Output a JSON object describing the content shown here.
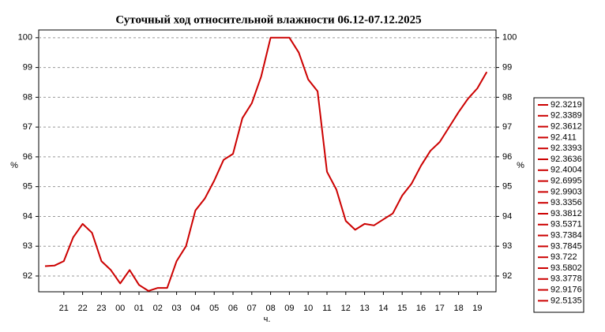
{
  "chart_data": {
    "type": "line",
    "title": "Суточный ход относительной влажности 06.12-07.12.2025",
    "xlabel": "ч.",
    "ylabel": "%",
    "y2label": "%",
    "categories": [
      null,
      null,
      "21",
      null,
      "22",
      null,
      "23",
      null,
      "00",
      null,
      "01",
      null,
      "02",
      null,
      "03",
      null,
      "04",
      null,
      "05",
      null,
      "06",
      null,
      "07",
      null,
      "08",
      null,
      "09",
      null,
      "10",
      null,
      "11",
      null,
      "12",
      null,
      "13",
      null,
      "14",
      null,
      "15",
      null,
      "16",
      null,
      "17",
      null,
      "18",
      null,
      "19",
      null
    ],
    "series": [
      {
        "color": "#cc0000",
        "values": [
          92.33,
          92.35,
          92.5,
          93.3,
          93.75,
          93.45,
          92.5,
          92.2,
          91.75,
          92.2,
          91.7,
          91.5,
          91.6,
          91.6,
          92.5,
          93.0,
          94.2,
          94.6,
          95.2,
          95.9,
          96.1,
          97.3,
          97.8,
          98.7,
          100,
          100,
          100,
          99.5,
          98.6,
          98.2,
          95.5,
          94.9,
          93.85,
          93.55,
          93.75,
          93.7,
          93.9,
          94.1,
          94.7,
          95.1,
          95.7,
          96.2,
          96.5,
          97.0,
          97.5,
          97.95,
          98.3,
          98.85
        ]
      }
    ],
    "legend_entries": [
      "92.3219",
      "92.3389",
      "92.3612",
      "92.411",
      "92.3393",
      "92.3636",
      "92.4004",
      "92.6995",
      "92.9903",
      "93.3356",
      "93.3812",
      "93.5371",
      "93.7384",
      "93.7845",
      "93.722",
      "93.5802",
      "93.3778",
      "92.9176",
      "92.5135"
    ],
    "ylim": [
      91.47,
      100.26
    ],
    "yticks": [
      92,
      93,
      94,
      95,
      96,
      97,
      98,
      99,
      100
    ],
    "grid": true
  }
}
